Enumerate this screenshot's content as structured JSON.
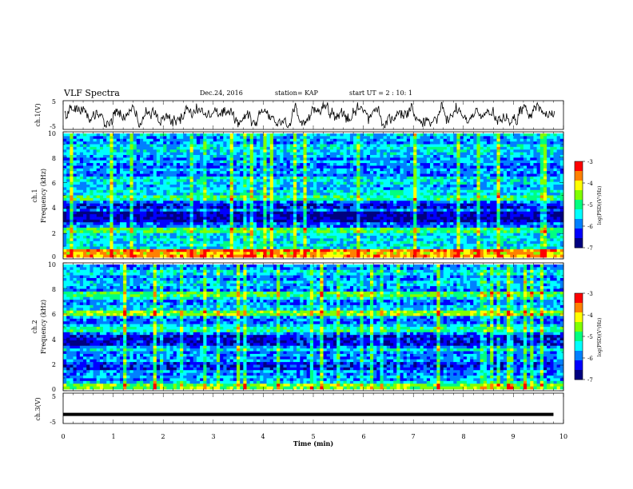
{
  "header": {
    "title": "VLF Spectra",
    "date": "Dec.24, 2016",
    "station": "station= KAP",
    "start": "start UT =  2 : 10: 1"
  },
  "chart_data": [
    {
      "type": "line",
      "ylabel": "ch.1(V)",
      "ylim": [
        -5,
        5
      ],
      "yticks": [
        "5",
        "-5"
      ],
      "xlim": [
        0,
        10
      ],
      "note": "waveform trace, roughly oscillating about 0 V"
    },
    {
      "type": "heatmap",
      "ylabel_top": "ch.1",
      "ylabel": "Frequency (kHz)",
      "ylim": [
        0,
        10
      ],
      "yticks": [
        "0",
        "2",
        "4",
        "6",
        "8",
        "10"
      ],
      "xlim": [
        0,
        10
      ],
      "colorbar": {
        "label": "log(PSD)(V²/Hz)",
        "range": [
          -7,
          -3
        ],
        "ticks": [
          "-3",
          "-4",
          "-5",
          "-6",
          "-7"
        ]
      }
    },
    {
      "type": "heatmap",
      "ylabel_top": "ch.2",
      "ylabel": "Frequency (kHz)",
      "ylim": [
        0,
        10
      ],
      "yticks": [
        "0",
        "2",
        "4",
        "6",
        "8",
        "10"
      ],
      "xlim": [
        0,
        10
      ],
      "colorbar": {
        "label": "log(PSD)(V²/Hz)",
        "range": [
          -7,
          -3
        ],
        "ticks": [
          "-3",
          "-4",
          "-5",
          "-6",
          "-7"
        ]
      }
    },
    {
      "type": "line",
      "ylabel": "ch.3(V)",
      "ylim": [
        -5,
        5
      ],
      "yticks": [
        "5",
        "-5"
      ],
      "xlim": [
        0,
        10
      ],
      "x": [
        0,
        9.8
      ],
      "y": [
        -2,
        -2
      ]
    }
  ],
  "xaxis": {
    "label": "Time (min)",
    "ticks": [
      "0",
      "1",
      "2",
      "3",
      "4",
      "5",
      "6",
      "7",
      "8",
      "9",
      "10"
    ]
  },
  "colors": {
    "c0": "#000080",
    "c1": "#0000ff",
    "c2": "#0080ff",
    "c3": "#00ffff",
    "c4": "#00ff80",
    "c5": "#80ff00",
    "c6": "#ffff00",
    "c7": "#ff8000",
    "c8": "#ff0000"
  }
}
